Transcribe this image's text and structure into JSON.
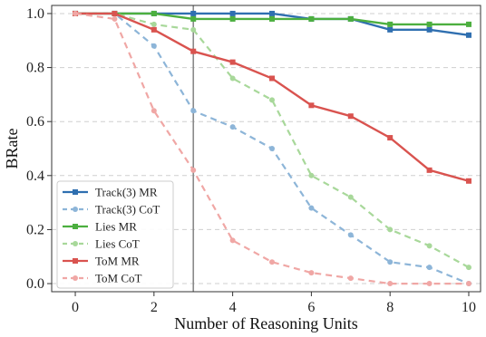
{
  "chart_data": {
    "type": "line",
    "xlabel": "Number of Reasoning Units",
    "ylabel": "BRate",
    "xlim": [
      -0.6,
      10.3
    ],
    "ylim": [
      -0.03,
      1.03
    ],
    "xticks": [
      0,
      2,
      4,
      6,
      8,
      10
    ],
    "yticks": [
      0.0,
      0.2,
      0.4,
      0.6,
      0.8,
      1.0
    ],
    "grid": "y-dashed",
    "legend_position": "lower-left",
    "vline_x": 3,
    "x": [
      0,
      1,
      2,
      3,
      4,
      5,
      6,
      7,
      8,
      9,
      10
    ],
    "series": [
      {
        "name": "Track(3) MR",
        "color": "#2f6fb0",
        "style": "solid",
        "marker": "square",
        "values": [
          1.0,
          1.0,
          1.0,
          1.0,
          1.0,
          1.0,
          0.98,
          0.98,
          0.94,
          0.94,
          0.92
        ]
      },
      {
        "name": "Track(3) CoT",
        "color": "#8db5d8",
        "style": "dashed",
        "marker": "circle",
        "values": [
          1.0,
          1.0,
          0.88,
          0.64,
          0.58,
          0.5,
          0.28,
          0.18,
          0.08,
          0.06,
          0.0
        ]
      },
      {
        "name": "Lies MR",
        "color": "#4caf3f",
        "style": "solid",
        "marker": "square",
        "values": [
          1.0,
          1.0,
          1.0,
          0.98,
          0.98,
          0.98,
          0.98,
          0.98,
          0.96,
          0.96,
          0.96
        ]
      },
      {
        "name": "Lies CoT",
        "color": "#a8d89a",
        "style": "dashed",
        "marker": "circle",
        "values": [
          1.0,
          1.0,
          0.96,
          0.94,
          0.76,
          0.68,
          0.4,
          0.32,
          0.2,
          0.14,
          0.06
        ]
      },
      {
        "name": "ToM MR",
        "color": "#d9534f",
        "style": "solid",
        "marker": "square",
        "values": [
          1.0,
          1.0,
          0.94,
          0.86,
          0.82,
          0.76,
          0.66,
          0.62,
          0.54,
          0.42,
          0.38
        ]
      },
      {
        "name": "ToM CoT",
        "color": "#f0a7a5",
        "style": "dashed",
        "marker": "circle",
        "values": [
          1.0,
          0.98,
          0.64,
          0.42,
          0.16,
          0.08,
          0.04,
          0.02,
          0.0,
          0.0,
          0.0
        ]
      }
    ]
  }
}
